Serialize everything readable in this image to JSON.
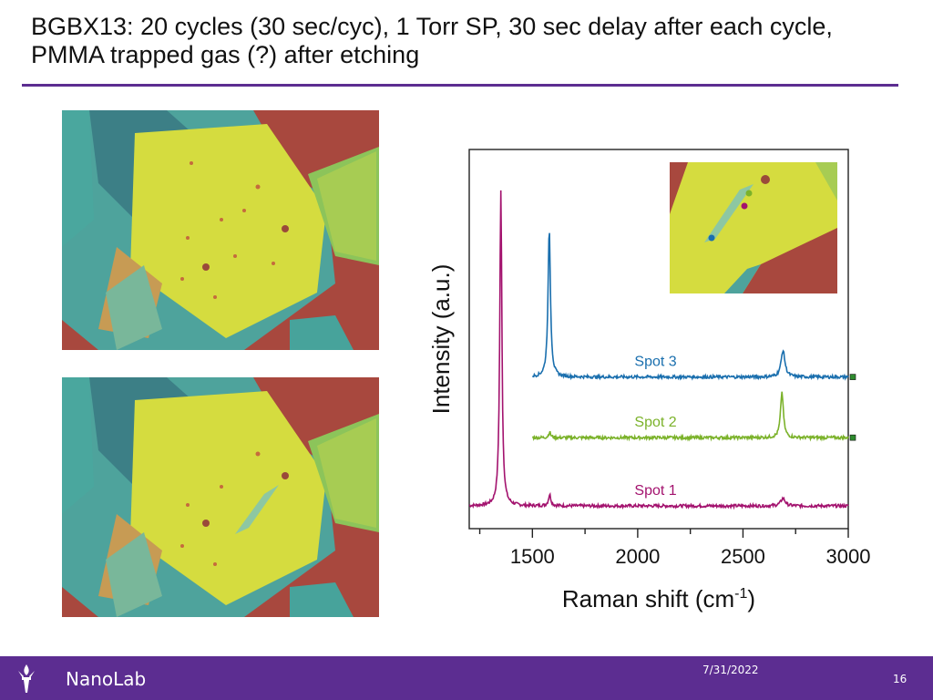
{
  "slide": {
    "title": "BGBX13: 20 cycles (30 sec/cyc), 1 Torr SP, 30 sec delay after each cycle, PMMA trapped gas (?) after etching"
  },
  "images": {
    "top": "optical-micrograph",
    "bottom": "optical-micrograph",
    "inset": "optical-micrograph-inset"
  },
  "chart_data": {
    "type": "line",
    "xlabel": "Raman shift (cm",
    "xlabel_sup": "-1",
    "xlabel_close": ")",
    "ylabel": "Intensity (a.u.)",
    "xlim": [
      1200,
      3000
    ],
    "ylim": [
      0,
      1
    ],
    "x_ticks": [
      1500,
      2000,
      2500,
      3000
    ],
    "grid": false,
    "series": [
      {
        "name": "Spot 1",
        "color": "#a3126e",
        "baseline": 0.06,
        "peaks": [
          [
            1350,
            0.83,
            12
          ],
          [
            1582,
            0.03,
            14
          ],
          [
            2690,
            0.02,
            25
          ]
        ]
      },
      {
        "name": "Spot 2",
        "color": "#7bb22a",
        "baseline": 0.24,
        "peaks": [
          [
            1582,
            0.015,
            12
          ],
          [
            2685,
            0.12,
            16
          ]
        ]
      },
      {
        "name": "Spot 3",
        "color": "#1a6fae",
        "baseline": 0.4,
        "peaks": [
          [
            1580,
            0.39,
            14
          ],
          [
            2690,
            0.07,
            22
          ]
        ]
      }
    ]
  },
  "footer": {
    "name": "NanoLab",
    "date": "7/31/2022",
    "page": "16"
  }
}
